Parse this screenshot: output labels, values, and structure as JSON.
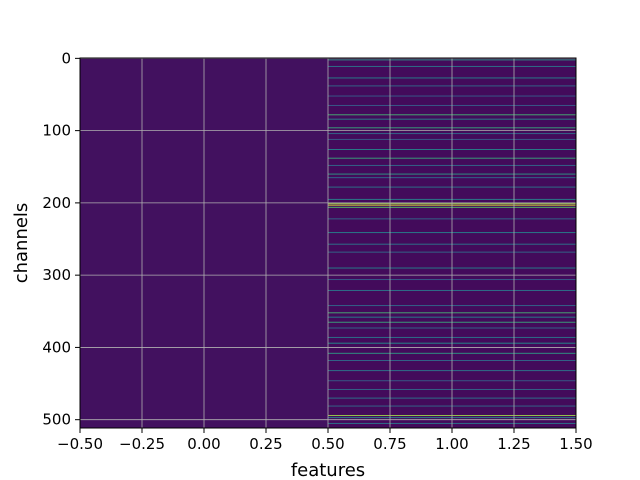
{
  "chart_data": {
    "type": "heatmap",
    "title": "",
    "xlabel": "features",
    "ylabel": "channels",
    "xlim": [
      -0.5,
      1.5
    ],
    "ylim": [
      511.5,
      -0.5
    ],
    "y_inverted": true,
    "grid": true,
    "legend": "none",
    "colormap": "viridis",
    "x_ticks": [
      -0.5,
      -0.25,
      0.0,
      0.25,
      0.5,
      0.75,
      1.0,
      1.25,
      1.5
    ],
    "x_tick_labels": [
      "−0.50",
      "−0.25",
      "0.00",
      "0.25",
      "0.50",
      "0.75",
      "1.00",
      "1.25",
      "1.50"
    ],
    "y_ticks": [
      0,
      100,
      200,
      300,
      400,
      500
    ],
    "y_tick_labels": [
      "0",
      "100",
      "200",
      "300",
      "400",
      "500"
    ],
    "n_rows": 512,
    "columns": [
      0,
      1
    ],
    "value_range": [
      0,
      1
    ],
    "column_0_level": 0.05,
    "column_1_base_level": 0.03,
    "column_1_highlights": [
      [
        2,
        0.55
      ],
      [
        11,
        0.4
      ],
      [
        27,
        0.45
      ],
      [
        38,
        0.35
      ],
      [
        52,
        0.3
      ],
      [
        65,
        0.3
      ],
      [
        78,
        0.65
      ],
      [
        84,
        0.45
      ],
      [
        96,
        0.6
      ],
      [
        104,
        0.35
      ],
      [
        112,
        0.3
      ],
      [
        126,
        0.45
      ],
      [
        138,
        0.6
      ],
      [
        148,
        0.35
      ],
      [
        160,
        0.55
      ],
      [
        165,
        0.35
      ],
      [
        178,
        0.4
      ],
      [
        195,
        0.45
      ],
      [
        201,
        0.85
      ],
      [
        203,
        0.95
      ],
      [
        206,
        0.7
      ],
      [
        222,
        0.35
      ],
      [
        241,
        0.45
      ],
      [
        257,
        0.4
      ],
      [
        268,
        0.35
      ],
      [
        290,
        0.45
      ],
      [
        306,
        0.3
      ],
      [
        321,
        0.4
      ],
      [
        342,
        0.35
      ],
      [
        352,
        0.65
      ],
      [
        358,
        0.45
      ],
      [
        365,
        0.6
      ],
      [
        373,
        0.35
      ],
      [
        386,
        0.4
      ],
      [
        394,
        0.5
      ],
      [
        408,
        0.55
      ],
      [
        418,
        0.35
      ],
      [
        432,
        0.4
      ],
      [
        446,
        0.3
      ],
      [
        458,
        0.35
      ],
      [
        470,
        0.4
      ],
      [
        481,
        0.35
      ],
      [
        494,
        0.85
      ],
      [
        497,
        0.45
      ],
      [
        505,
        0.4
      ]
    ]
  }
}
